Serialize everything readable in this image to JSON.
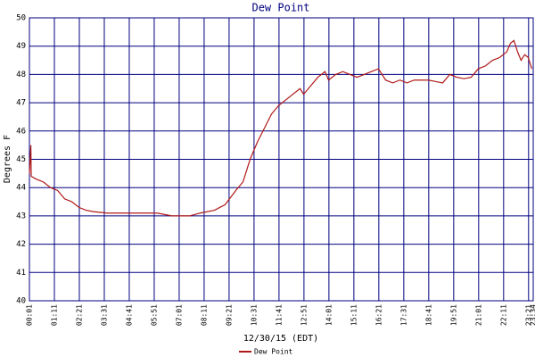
{
  "chart_data": {
    "type": "line",
    "title": "Dew Point",
    "x_label": "12/30/15 (EDT)",
    "y_label": "Degrees F",
    "x": [
      "00:01",
      "00:05",
      "00:06",
      "00:20",
      "00:40",
      "01:00",
      "01:20",
      "01:40",
      "02:00",
      "02:20",
      "02:40",
      "03:00",
      "03:40",
      "04:30",
      "05:00",
      "06:00",
      "06:40",
      "07:30",
      "08:00",
      "08:40",
      "09:10",
      "09:40",
      "10:00",
      "10:20",
      "10:40",
      "11:00",
      "11:20",
      "11:40",
      "12:00",
      "12:20",
      "12:40",
      "12:50",
      "13:10",
      "13:30",
      "13:50",
      "14:00",
      "14:20",
      "14:40",
      "15:00",
      "15:20",
      "15:40",
      "16:00",
      "16:20",
      "16:40",
      "17:00",
      "17:20",
      "17:40",
      "18:00",
      "18:20",
      "18:40",
      "19:00",
      "19:20",
      "19:40",
      "20:00",
      "20:20",
      "20:40",
      "21:00",
      "21:20",
      "21:40",
      "22:00",
      "22:20",
      "22:30",
      "22:40",
      "22:50",
      "23:00",
      "23:10",
      "23:20",
      "23:30"
    ],
    "series": [
      {
        "name": "Dew Point",
        "color": "#b01818",
        "values": [
          44.5,
          45.5,
          44.4,
          44.3,
          44.2,
          44.0,
          43.9,
          43.6,
          43.5,
          43.3,
          43.2,
          43.15,
          43.1,
          43.1,
          43.1,
          43.1,
          43.0,
          43.0,
          43.1,
          43.2,
          43.4,
          43.9,
          44.2,
          45.0,
          45.6,
          46.1,
          46.6,
          46.9,
          47.1,
          47.3,
          47.5,
          47.3,
          47.6,
          47.9,
          48.1,
          47.8,
          48.0,
          48.1,
          48.0,
          47.9,
          48.0,
          48.1,
          48.2,
          47.8,
          47.7,
          47.8,
          47.7,
          47.8,
          47.8,
          47.8,
          47.75,
          47.7,
          48.0,
          47.9,
          47.85,
          47.9,
          48.2,
          48.3,
          48.5,
          48.6,
          48.8,
          49.1,
          49.2,
          48.8,
          48.5,
          48.7,
          48.6,
          48.2
        ]
      }
    ],
    "xlim": [
      "00:01",
      "23:34"
    ],
    "xticks": [
      "00:01",
      "01:11",
      "02:21",
      "03:31",
      "04:41",
      "05:51",
      "07:01",
      "08:11",
      "09:21",
      "10:31",
      "11:41",
      "12:51",
      "14:01",
      "15:11",
      "16:21",
      "17:31",
      "18:41",
      "19:51",
      "21:01",
      "22:11",
      "23:21",
      "23:34"
    ],
    "ylim": [
      40,
      50
    ],
    "yticks": [
      40,
      41,
      42,
      43,
      44,
      45,
      46,
      47,
      48,
      49,
      50
    ],
    "grid": true
  }
}
